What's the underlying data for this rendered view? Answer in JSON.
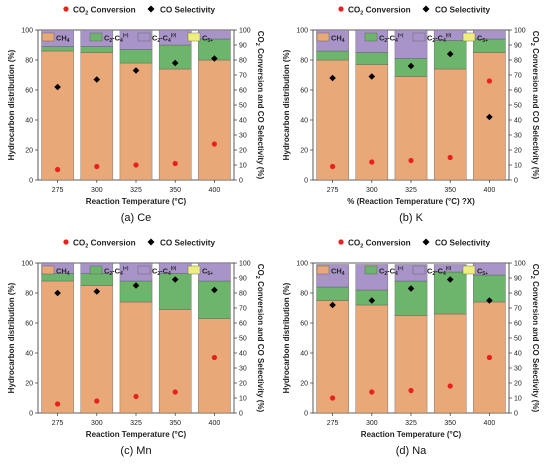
{
  "figure": {
    "colors": {
      "ch4": "#E8A877",
      "c2c4_eq": "#6DB56D",
      "c2c4_ol": "#A994C9",
      "c5p": "#EEEE7C",
      "conversion": "#E8211D",
      "selectivity": "#000000"
    }
  },
  "chart_data": [
    {
      "type": "bar",
      "panel_id": "ce",
      "caption_letter": "(a)",
      "caption_name": "Ce",
      "xlabel": "Reaction Temperature (°C)",
      "ylabel_left": "Hydrocarbon distribution (%)",
      "ylabel_right_line1": "CO",
      "ylabel_right_sub": "2",
      "ylabel_right_line2": " Conversion and CO Selectivity (%)",
      "ylim_left": [
        0,
        100
      ],
      "ylim_right": [
        0,
        100
      ],
      "yticks_left": [
        0,
        20,
        40,
        60,
        80,
        100
      ],
      "yticks_right": [
        0,
        10,
        20,
        30,
        40,
        50,
        60,
        70,
        80,
        90,
        100
      ],
      "stacked": true,
      "categories": [
        "275",
        "300",
        "325",
        "350",
        "400"
      ],
      "legend_top": [
        {
          "key": "conversion",
          "text": "CO",
          "sub": "2",
          "rest": " Conversion"
        },
        {
          "key": "selectivity",
          "text": "CO Selectivity",
          "sub": "",
          "rest": ""
        }
      ],
      "legend_inside": [
        {
          "key": "ch4",
          "text": "CH",
          "sub": "4",
          "sup": ""
        },
        {
          "key": "c2c4_eq",
          "text": "C",
          "sub": "2",
          "mid": "-C",
          "sub2": "4",
          "sup": "(=)"
        },
        {
          "key": "c2c4_ol",
          "text": "C",
          "sub": "2",
          "mid": "-C",
          "sub2": "4",
          "sup": "(0)"
        },
        {
          "key": "c5p",
          "text": "C",
          "sub": "5+",
          "sup": ""
        }
      ],
      "series": [
        {
          "name": "CH4",
          "key": "ch4",
          "values": [
            86,
            85,
            78,
            74,
            80
          ]
        },
        {
          "name": "C2-C4(=)",
          "key": "c2c4_eq",
          "values": [
            3,
            4,
            9,
            16,
            14
          ]
        },
        {
          "name": "C2-C4(0)",
          "key": "c2c4_ol",
          "values": [
            11,
            11,
            13,
            10,
            6
          ]
        },
        {
          "name": "C5+",
          "key": "c5p",
          "values": [
            0,
            0,
            0,
            0,
            0
          ]
        }
      ],
      "points": [
        {
          "name": "CO2 Conversion",
          "key": "conversion",
          "marker": "circle",
          "values": [
            7,
            9,
            10,
            11,
            24
          ]
        },
        {
          "name": "CO Selectivity",
          "key": "selectivity",
          "marker": "diamond",
          "values": [
            62,
            67,
            73,
            78,
            81
          ]
        }
      ]
    },
    {
      "type": "bar",
      "panel_id": "k",
      "caption_letter": "(b)",
      "caption_name": "K",
      "xlabel": "% (Reaction Temperature (°C) ?X)",
      "ylabel_left": "Hydrocarbon distribution (%)",
      "ylabel_right_line1": "CO",
      "ylabel_right_sub": "2",
      "ylabel_right_line2": " Conversion and CO Selectivity (%)",
      "ylim_left": [
        0,
        100
      ],
      "ylim_right": [
        0,
        100
      ],
      "yticks_left": [
        0,
        20,
        40,
        60,
        80,
        100
      ],
      "yticks_right": [
        0,
        10,
        20,
        30,
        40,
        50,
        60,
        70,
        80,
        90,
        100
      ],
      "stacked": true,
      "categories": [
        "275",
        "300",
        "325",
        "350",
        "400"
      ],
      "legend_top": [
        {
          "key": "conversion",
          "text": "CO",
          "sub": "2",
          "rest": " Conversion"
        },
        {
          "key": "selectivity",
          "text": "CO Selectivity",
          "sub": "",
          "rest": ""
        }
      ],
      "legend_inside": [
        {
          "key": "ch4",
          "text": "CH",
          "sub": "4",
          "sup": ""
        },
        {
          "key": "c2c4_eq",
          "text": "C",
          "sub": "2",
          "mid": "-C",
          "sub2": "4",
          "sup": "(=)"
        },
        {
          "key": "c2c4_ol",
          "text": "C",
          "sub": "2",
          "mid": "-C",
          "sub2": "4",
          "sup": "(0)"
        },
        {
          "key": "c5p",
          "text": "C",
          "sub": "5+",
          "sup": ""
        }
      ],
      "series": [
        {
          "name": "CH4",
          "key": "ch4",
          "values": [
            80,
            77,
            69,
            74,
            85
          ]
        },
        {
          "name": "C2-C4(=)",
          "key": "c2c4_eq",
          "values": [
            6,
            8,
            12,
            19,
            9
          ]
        },
        {
          "name": "C2-C4(0)",
          "key": "c2c4_ol",
          "values": [
            14,
            15,
            19,
            7,
            6
          ]
        },
        {
          "name": "C5+",
          "key": "c5p",
          "values": [
            0,
            0,
            0,
            0,
            0
          ]
        }
      ],
      "points": [
        {
          "name": "CO2 Conversion",
          "key": "conversion",
          "marker": "circle",
          "values": [
            9,
            12,
            13,
            15,
            66
          ]
        },
        {
          "name": "CO Selectivity",
          "key": "selectivity",
          "marker": "diamond",
          "values": [
            68,
            69,
            76,
            84,
            42
          ]
        }
      ]
    },
    {
      "type": "bar",
      "panel_id": "mn",
      "caption_letter": "(c)",
      "caption_name": "Mn",
      "xlabel": "Reaction Temperature (°C)",
      "ylabel_left": "Hydrocarbon distribution (%)",
      "ylabel_right_line1": "CO",
      "ylabel_right_sub": "2",
      "ylabel_right_line2": " Conversion and CO Selectivity (%)",
      "ylim_left": [
        0,
        100
      ],
      "ylim_right": [
        0,
        100
      ],
      "yticks_left": [
        0,
        20,
        40,
        60,
        80,
        100
      ],
      "yticks_right": [
        0,
        10,
        20,
        30,
        40,
        50,
        60,
        70,
        80,
        90,
        100
      ],
      "stacked": true,
      "categories": [
        "275",
        "300",
        "325",
        "350",
        "400"
      ],
      "legend_top": [
        {
          "key": "conversion",
          "text": "CO",
          "sub": "2",
          "rest": " Conversion"
        },
        {
          "key": "selectivity",
          "text": "CO Selectivity",
          "sub": "",
          "rest": ""
        }
      ],
      "legend_inside": [
        {
          "key": "ch4",
          "text": "CH",
          "sub": "4",
          "sup": ""
        },
        {
          "key": "c2c4_eq",
          "text": "C",
          "sub": "2",
          "mid": "-C",
          "sub2": "4",
          "sup": "(=)"
        },
        {
          "key": "c2c4_ol",
          "text": "C",
          "sub": "2",
          "mid": "-C",
          "sub2": "4",
          "sup": "(0)"
        },
        {
          "key": "c5p",
          "text": "C",
          "sub": "5+",
          "sup": ""
        }
      ],
      "series": [
        {
          "name": "CH4",
          "key": "ch4",
          "values": [
            88,
            85,
            74,
            69,
            63
          ]
        },
        {
          "name": "C2-C4(=)",
          "key": "c2c4_eq",
          "values": [
            5,
            8,
            14,
            24,
            25
          ]
        },
        {
          "name": "C2-C4(0)",
          "key": "c2c4_ol",
          "values": [
            7,
            7,
            12,
            7,
            12
          ]
        },
        {
          "name": "C5+",
          "key": "c5p",
          "values": [
            0,
            0,
            0,
            0,
            0
          ]
        }
      ],
      "points": [
        {
          "name": "CO2 Conversion",
          "key": "conversion",
          "marker": "circle",
          "values": [
            6,
            8,
            11,
            14,
            37
          ]
        },
        {
          "name": "CO Selectivity",
          "key": "selectivity",
          "marker": "diamond",
          "values": [
            80,
            81,
            85,
            89,
            82
          ]
        }
      ]
    },
    {
      "type": "bar",
      "panel_id": "na",
      "caption_letter": "(d)",
      "caption_name": "Na",
      "xlabel": "Reaction Temperature (°C)",
      "ylabel_left": "Hydrocarbon distribution (%)",
      "ylabel_right_line1": "CO",
      "ylabel_right_sub": "2",
      "ylabel_right_line2": " Conversion and CO Selectivity (%)",
      "ylim_left": [
        0,
        100
      ],
      "ylim_right": [
        0,
        100
      ],
      "yticks_left": [
        0,
        20,
        40,
        60,
        80,
        100
      ],
      "yticks_right": [
        0,
        10,
        20,
        30,
        40,
        50,
        60,
        70,
        80,
        90,
        100
      ],
      "stacked": true,
      "categories": [
        "275",
        "300",
        "325",
        "350",
        "400"
      ],
      "legend_top": [
        {
          "key": "conversion",
          "text": "CO",
          "sub": "2",
          "rest": " Conversion"
        },
        {
          "key": "selectivity",
          "text": "CO Selectivity",
          "sub": "",
          "rest": ""
        }
      ],
      "legend_inside": [
        {
          "key": "ch4",
          "text": "CH",
          "sub": "4",
          "sup": ""
        },
        {
          "key": "c2c4_eq",
          "text": "C",
          "sub": "2",
          "mid": "-C",
          "sub2": "4",
          "sup": "(=)"
        },
        {
          "key": "c2c4_ol",
          "text": "C",
          "sub": "2",
          "mid": "-C",
          "sub2": "4",
          "sup": "(0)"
        },
        {
          "key": "c5p",
          "text": "C",
          "sub": "5+",
          "sup": ""
        }
      ],
      "series": [
        {
          "name": "CH4",
          "key": "ch4",
          "values": [
            75,
            72,
            65,
            66,
            74
          ]
        },
        {
          "name": "C2-C4(=)",
          "key": "c2c4_eq",
          "values": [
            9,
            10,
            23,
            28,
            18
          ]
        },
        {
          "name": "C2-C4(0)",
          "key": "c2c4_ol",
          "values": [
            15,
            17,
            11,
            5,
            8
          ]
        },
        {
          "name": "C5+",
          "key": "c5p",
          "values": [
            0,
            0,
            0,
            0,
            0
          ]
        }
      ],
      "points": [
        {
          "name": "CO2 Conversion",
          "key": "conversion",
          "marker": "circle",
          "values": [
            10,
            14,
            15,
            18,
            37
          ]
        },
        {
          "name": "CO Selectivity",
          "key": "selectivity",
          "marker": "diamond",
          "values": [
            72,
            75,
            83,
            89,
            75
          ]
        }
      ]
    }
  ]
}
